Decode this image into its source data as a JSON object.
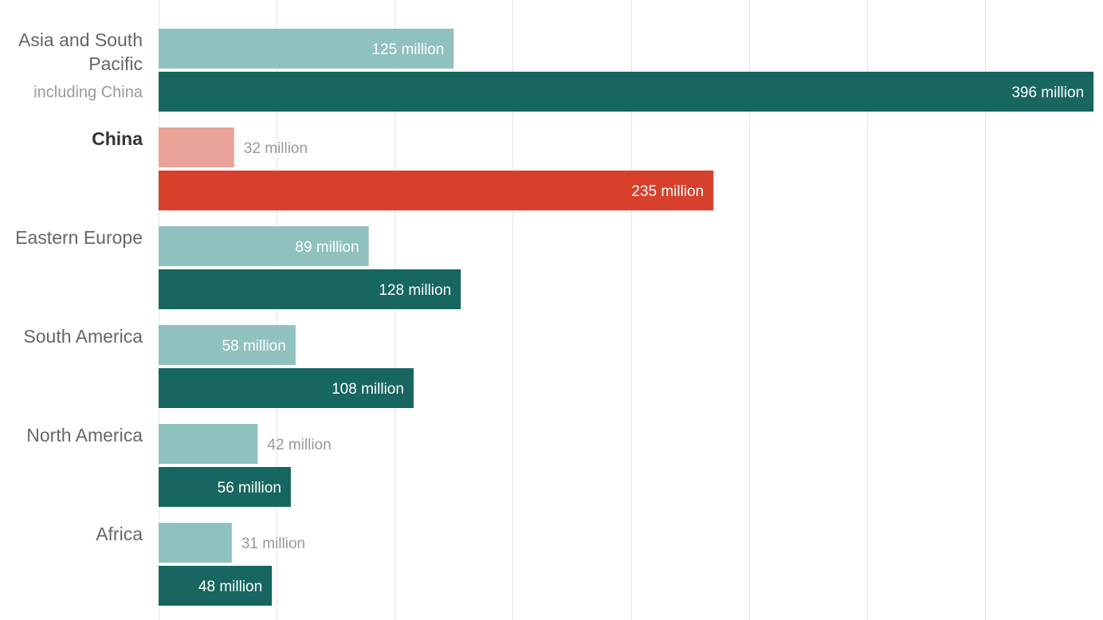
{
  "chart_data": {
    "type": "bar",
    "orientation": "horizontal",
    "xlim": [
      0,
      400
    ],
    "grid": true,
    "gridline_step": 50,
    "colors": {
      "light": "#8fc1be",
      "dark": "#176660",
      "highlight_light": "#e9a297",
      "highlight_dark": "#d7402b",
      "grid": "#e5e5e5",
      "label_inside": "#ffffff",
      "label_outside": "#999999"
    },
    "categories": [
      {
        "label_lines": [
          "Asia and South",
          "Pacific"
        ],
        "sublabel": "including China",
        "highlight": false,
        "bold": false
      },
      {
        "label_lines": [
          "China"
        ],
        "sublabel": "",
        "highlight": true,
        "bold": true
      },
      {
        "label_lines": [
          "Eastern Europe"
        ],
        "sublabel": "",
        "highlight": false,
        "bold": false
      },
      {
        "label_lines": [
          "South America"
        ],
        "sublabel": "",
        "highlight": false,
        "bold": false
      },
      {
        "label_lines": [
          "North America"
        ],
        "sublabel": "",
        "highlight": false,
        "bold": false
      },
      {
        "label_lines": [
          "Africa"
        ],
        "sublabel": "",
        "highlight": false,
        "bold": false
      }
    ],
    "series": [
      {
        "values": [
          125,
          32,
          89,
          58,
          42,
          31
        ],
        "labels": [
          "125 million",
          "32 million",
          "89 million",
          "58 million",
          "42 million",
          "31 million"
        ]
      },
      {
        "values": [
          396,
          235,
          128,
          108,
          56,
          48
        ],
        "labels": [
          "396 million",
          "235 million",
          "128 million",
          "108 million",
          "56 million",
          "48 million"
        ]
      }
    ]
  }
}
